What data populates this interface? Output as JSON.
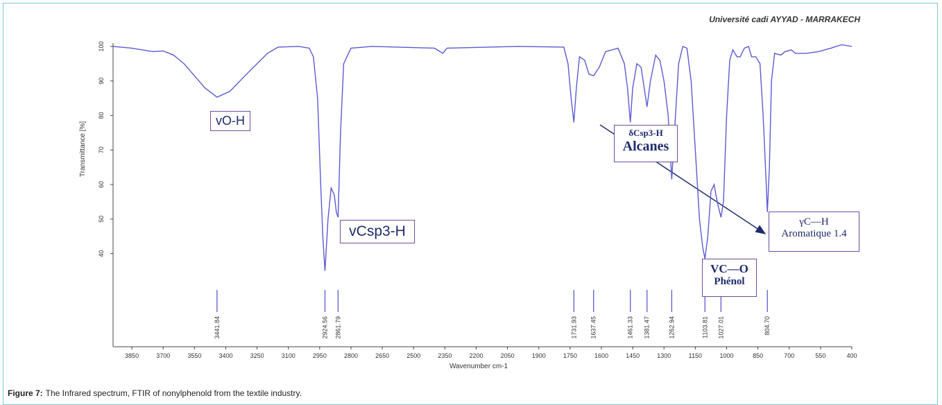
{
  "chart_data": {
    "type": "line",
    "source": "Université cadi AYYAD - MARRAKECH",
    "xlabel": "Wavenumber cm-1",
    "ylabel": "Transmittance [%]",
    "x": [
      3940,
      3850,
      3750,
      3700,
      3650,
      3600,
      3550,
      3500,
      3441.84,
      3380,
      3300,
      3200,
      3150,
      3050,
      3000,
      2980,
      2960,
      2945,
      2935,
      2924.56,
      2910,
      2895,
      2880,
      2870,
      2861.79,
      2850,
      2835,
      2800,
      2700,
      2400,
      2360,
      2340,
      2000,
      1780,
      1760,
      1745,
      1731.93,
      1720,
      1705,
      1680,
      1660,
      1637.45,
      1610,
      1580,
      1520,
      1490,
      1475,
      1461.33,
      1450,
      1430,
      1410,
      1395,
      1381.47,
      1365,
      1340,
      1320,
      1300,
      1280,
      1262.94,
      1250,
      1230,
      1210,
      1190,
      1170,
      1150,
      1130,
      1115,
      1103.81,
      1090,
      1075,
      1060,
      1045,
      1027.01,
      1015,
      1000,
      985,
      970,
      950,
      935,
      915,
      895,
      880,
      860,
      840,
      825,
      810,
      804.7,
      795,
      785,
      770,
      740,
      720,
      690,
      670,
      620,
      560,
      500,
      450,
      400
    ],
    "series": [
      {
        "color": "#5a5ad2",
        "values": [
          100,
          99.5,
          98.5,
          98.7,
          97.5,
          95,
          91.5,
          88,
          85.3,
          87,
          92,
          98,
          99.8,
          100,
          99.5,
          97,
          85,
          60,
          45,
          35,
          50,
          59,
          57,
          52,
          50.5,
          75,
          95,
          99.5,
          100,
          99.5,
          98,
          99.5,
          100,
          99.8,
          95,
          85,
          78,
          88,
          97,
          96,
          92,
          91.5,
          94,
          98.5,
          99.5,
          95,
          88,
          78,
          88,
          95,
          94,
          88,
          82.5,
          90,
          97.5,
          96,
          90,
          80,
          61.5,
          75,
          95,
          100,
          99.5,
          90,
          70,
          50,
          42,
          38.5,
          45,
          58,
          60,
          55,
          50.5,
          55,
          80,
          96,
          99,
          97,
          97,
          99.5,
          100,
          97,
          97,
          95,
          80,
          60,
          52,
          65,
          90,
          98,
          97.5,
          98.5,
          99,
          98,
          98,
          98.5,
          99.5,
          100.5,
          100
        ]
      }
    ],
    "xlim": [
      3940,
      400
    ],
    "ylim": [
      13,
      101
    ],
    "xticks": [
      3850,
      3700,
      3550,
      3400,
      3250,
      3100,
      2950,
      2800,
      2650,
      2500,
      2350,
      2200,
      2050,
      1900,
      1750,
      1600,
      1450,
      1300,
      1150,
      1000,
      850,
      700,
      550,
      400
    ],
    "yticks": [
      100,
      90,
      80,
      70,
      60,
      50,
      40
    ],
    "peaks": [
      3441.84,
      2924.56,
      2861.79,
      1731.93,
      1637.45,
      1461.33,
      1381.47,
      1262.94,
      1103.81,
      1027.01,
      {
        "value": 804.7,
        "label": "804.70"
      }
    ],
    "annotations": [
      [
        "vO-H"
      ],
      [
        "vCsp3-H"
      ],
      [
        "δCsp3-H",
        "Alcanes"
      ],
      [
        "VC—O",
        "Phénol"
      ],
      [
        "γC—H",
        "Aromatique 1.4"
      ]
    ]
  },
  "caption": {
    "label": "Figure 7:",
    "text": "The Infrared spectrum, FTIR of nonylphenold from the textile industry."
  }
}
